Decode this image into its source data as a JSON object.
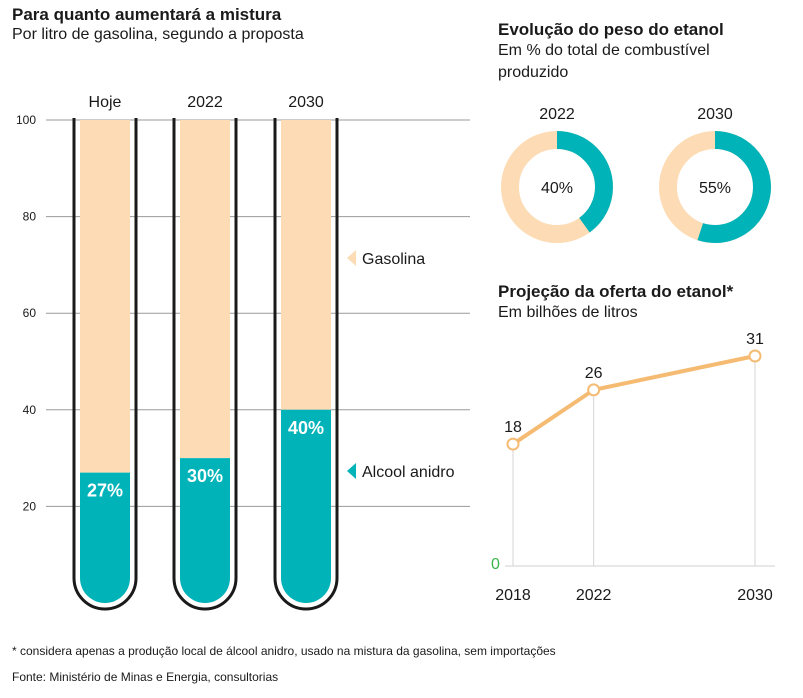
{
  "colors": {
    "gasolina": "#fddcb5",
    "alcool": "#00b3b8",
    "line": "#f5bb72",
    "zero": "#3bb54a",
    "grid": "#9a9a9a",
    "tube": "#1a1a1a"
  },
  "left": {
    "title": "Para quanto aumentará a mistura",
    "subtitle": "Por litro de gasolina, segundo a proposta"
  },
  "donuts_panel": {
    "title": "Evolução do peso do etanol",
    "subtitle_line1": "Em % do total de combustível",
    "subtitle_line2": "produzido"
  },
  "line_panel": {
    "title": "Projeção da oferta do etanol*",
    "subtitle": "Em bilhões de litros"
  },
  "footnote": "* considera apenas a produção local de álcool anidro, usado na mistura da gasolina, sem importações",
  "source": "Fonte: Ministério de Minas e Energia, consultorias",
  "chart_data": [
    {
      "type": "bar",
      "title": "Para quanto aumentará a mistura",
      "categories": [
        "Hoje",
        "2022",
        "2030"
      ],
      "series": [
        {
          "name": "Alcool anidro",
          "values": [
            27,
            30,
            40
          ],
          "labels": [
            "27%",
            "30%",
            "40%"
          ]
        },
        {
          "name": "Gasolina",
          "values": [
            73,
            70,
            60
          ]
        }
      ],
      "stacked": true,
      "yticks": [
        "100",
        "80",
        "60",
        "40",
        "20"
      ],
      "ytick_values": [
        100,
        80,
        60,
        40,
        20
      ],
      "ylim": [
        0,
        100
      ],
      "grid": true,
      "legend": "right"
    },
    {
      "type": "pie",
      "title": "Evolução do peso do etanol",
      "donuts": [
        {
          "label": "2022",
          "value": 40,
          "value_label": "40%"
        },
        {
          "label": "2030",
          "value": 55,
          "value_label": "55%"
        }
      ]
    },
    {
      "type": "line",
      "title": "Projeção da oferta do etanol*",
      "x": [
        "2018",
        "2022",
        "2030"
      ],
      "x_values": [
        2018,
        2022,
        2030
      ],
      "y": [
        18,
        26,
        31
      ],
      "y_labels": [
        "18",
        "26",
        "31"
      ],
      "zero_label": "0",
      "ylim": [
        0,
        31
      ]
    }
  ]
}
